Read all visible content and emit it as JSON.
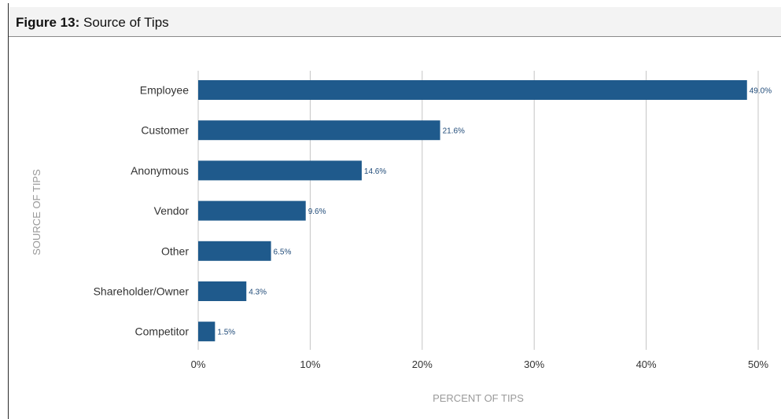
{
  "figure": {
    "title_prefix": "Figure 13:",
    "title_text": "Source of Tips"
  },
  "colors": {
    "bar": "#1f5a8c",
    "grid": "#c4c4c4",
    "axis_label": "#9a9a9a"
  },
  "chart_data": {
    "type": "bar",
    "orientation": "horizontal",
    "categories": [
      "Employee",
      "Customer",
      "Anonymous",
      "Vendor",
      "Other",
      "Shareholder/Owner",
      "Competitor"
    ],
    "values": [
      49.0,
      21.6,
      14.6,
      9.6,
      6.5,
      4.3,
      1.5
    ],
    "value_labels": [
      "49.0%",
      "21.6%",
      "14.6%",
      "9.6%",
      "6.5%",
      "4.3%",
      "1.5%"
    ],
    "xlim": [
      0,
      50
    ],
    "xticks": [
      0,
      10,
      20,
      30,
      40,
      50
    ],
    "xtick_labels": [
      "0%",
      "10%",
      "20%",
      "30%",
      "40%",
      "50%"
    ],
    "xlabel": "PERCENT OF TIPS",
    "ylabel": "SOURCE OF TIPS",
    "grid": true
  }
}
